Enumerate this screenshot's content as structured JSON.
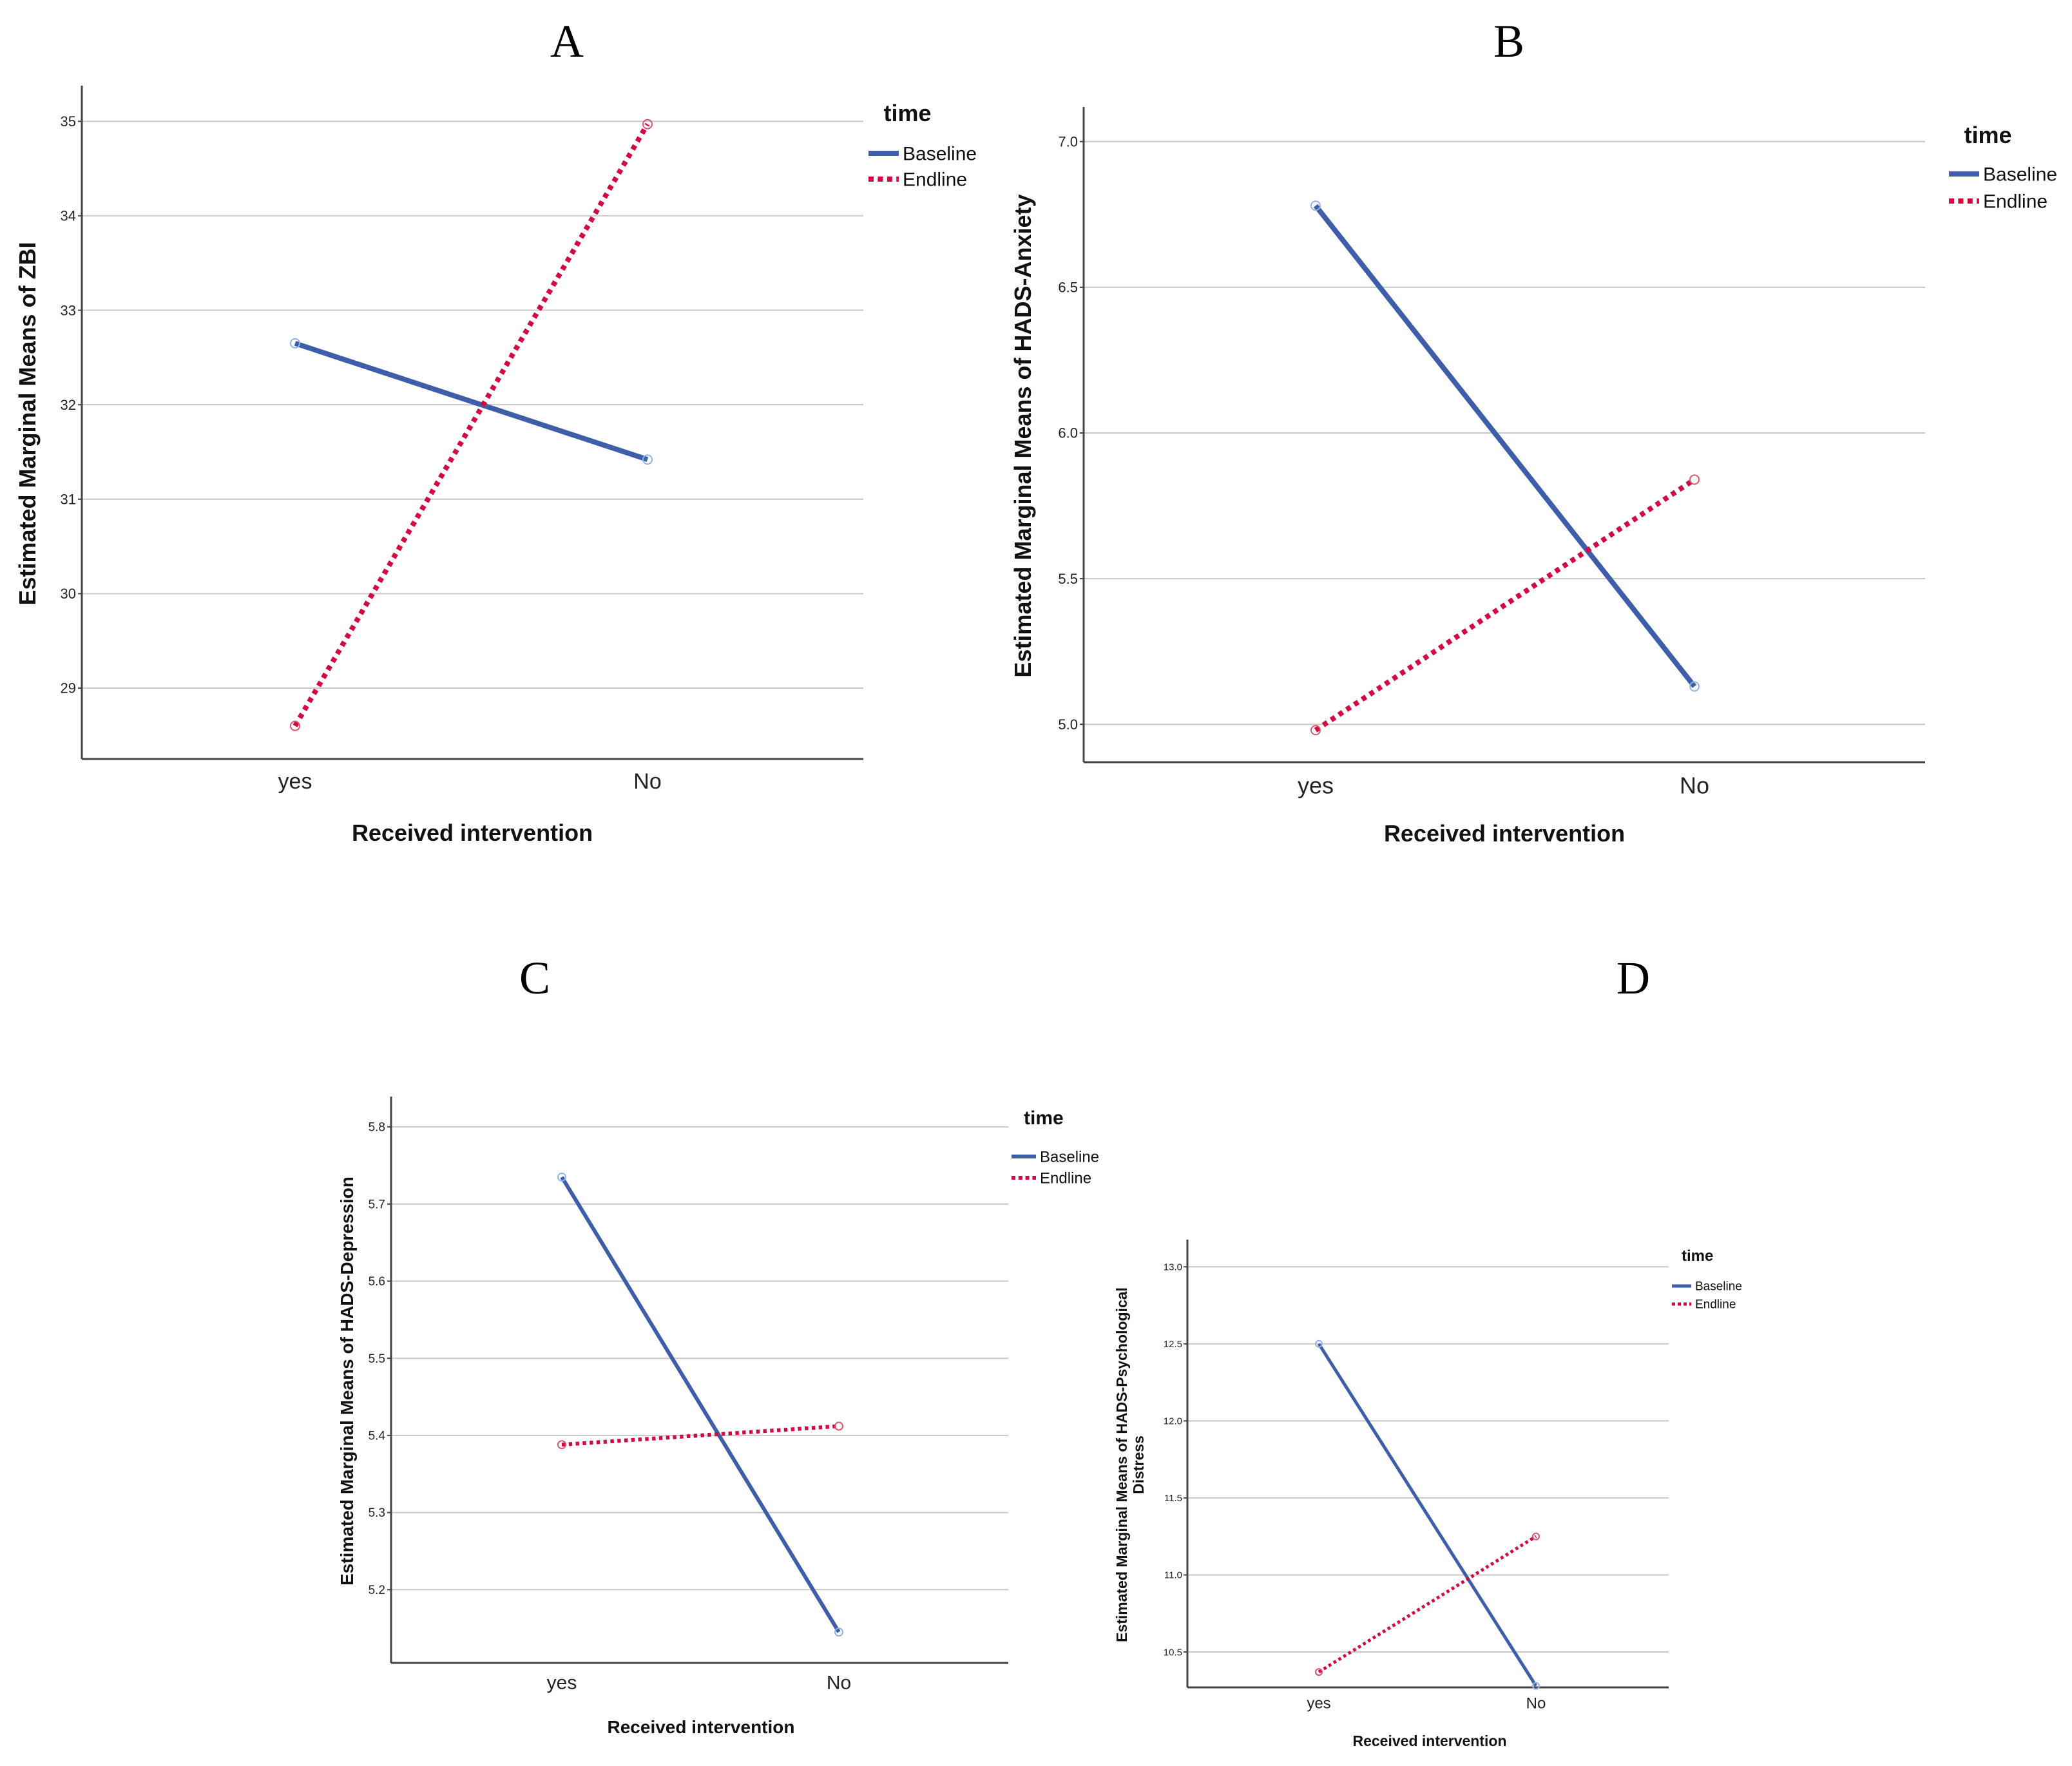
{
  "colors": {
    "baseline": "#3f5eaa",
    "endline": "#d4093f",
    "baseline_marker": "#8fb3e8",
    "endline_marker": "#e0536f",
    "grid": "#c8c8c8",
    "axis": "#444444"
  },
  "chart_data": [
    {
      "type": "line",
      "panel": "A",
      "xlabel": "Received intervention",
      "ylabel": "Estimated Marginal Means of ZBI",
      "categories": [
        "yes",
        "No"
      ],
      "yticks": [
        "29",
        "30",
        "31",
        "32",
        "33",
        "34",
        "35"
      ],
      "ylim": [
        28.25,
        35.35
      ],
      "legend_title": "time",
      "series": [
        {
          "name": "Baseline",
          "values": [
            32.65,
            31.42
          ]
        },
        {
          "name": "Endline",
          "values": [
            28.6,
            34.97
          ]
        }
      ]
    },
    {
      "type": "line",
      "panel": "B",
      "xlabel": "Received intervention",
      "ylabel": "Estimated Marginal Means of HADS-Anxiety",
      "categories": [
        "yes",
        "No"
      ],
      "yticks": [
        "5.0",
        "5.5",
        "6.0",
        "6.5",
        "7.0"
      ],
      "ylim": [
        4.87,
        7.11
      ],
      "legend_title": "time",
      "series": [
        {
          "name": "Baseline",
          "values": [
            6.78,
            5.13
          ]
        },
        {
          "name": "Endline",
          "values": [
            4.98,
            5.84
          ]
        }
      ]
    },
    {
      "type": "line",
      "panel": "C",
      "xlabel": "Received intervention",
      "ylabel": "Estimated Marginal Means of HADS-Depression",
      "categories": [
        "yes",
        "No"
      ],
      "yticks": [
        "5.2",
        "5.3",
        "5.4",
        "5.5",
        "5.6",
        "5.7",
        "5.8"
      ],
      "ylim": [
        5.105,
        5.836
      ],
      "legend_title": "time",
      "series": [
        {
          "name": "Baseline",
          "values": [
            5.735,
            5.145
          ]
        },
        {
          "name": "Endline",
          "values": [
            5.388,
            5.412
          ]
        }
      ]
    },
    {
      "type": "line",
      "panel": "D",
      "xlabel": "Received intervention",
      "ylabel": "Estimated Marginal Means of HADS-Psychological Distress",
      "ylabel_lines": [
        "Estimated Marginal Means of HADS-Psychological",
        "Distress"
      ],
      "categories": [
        "yes",
        "No"
      ],
      "yticks": [
        "10.5",
        "11.0",
        "11.5",
        "12.0",
        "12.5",
        "13.0"
      ],
      "ylim": [
        10.27,
        13.16
      ],
      "legend_title": "time",
      "series": [
        {
          "name": "Baseline",
          "values": [
            12.5,
            10.28
          ]
        },
        {
          "name": "Endline",
          "values": [
            10.37,
            11.25
          ]
        }
      ]
    }
  ]
}
